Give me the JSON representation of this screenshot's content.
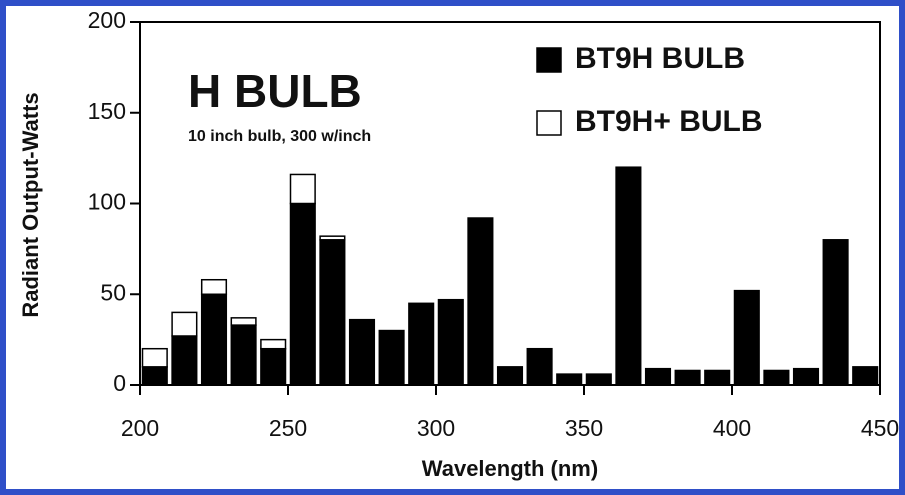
{
  "chart_data": {
    "type": "histogram",
    "annotations": [
      "H BULB",
      "10 inch bulb, 300 w/inch"
    ],
    "x_label": "Wavelength (nm)",
    "y_label": "Radiant Output-Watts",
    "bins": [
      200,
      210,
      220,
      230,
      240,
      250,
      260,
      270,
      280,
      290,
      300,
      310,
      320,
      330,
      340,
      350,
      360,
      370,
      380,
      390,
      400,
      410,
      420,
      430,
      440,
      450
    ],
    "series": [
      {
        "name": "BT9H BULB",
        "color": "#000000",
        "values": [
          10,
          27,
          50,
          33,
          20,
          100,
          80,
          36,
          30,
          45,
          47,
          92,
          10,
          20,
          6,
          6,
          120,
          9,
          8,
          8,
          52,
          8,
          9,
          80,
          10
        ]
      },
      {
        "name": "BT9H+ BULB",
        "color": "#ffffff",
        "values": [
          10,
          13,
          8,
          4,
          5,
          16,
          2,
          0,
          0,
          0,
          0,
          0,
          0,
          0,
          0,
          0,
          0,
          0,
          0,
          0,
          0,
          0,
          0,
          0,
          0
        ]
      }
    ],
    "xlim": [
      200,
      450
    ],
    "ylim": [
      0,
      200
    ],
    "xticks": [
      200,
      250,
      300,
      350,
      400,
      450
    ],
    "yticks": [
      0,
      50,
      100,
      150,
      200
    ],
    "legend": "upper right"
  }
}
